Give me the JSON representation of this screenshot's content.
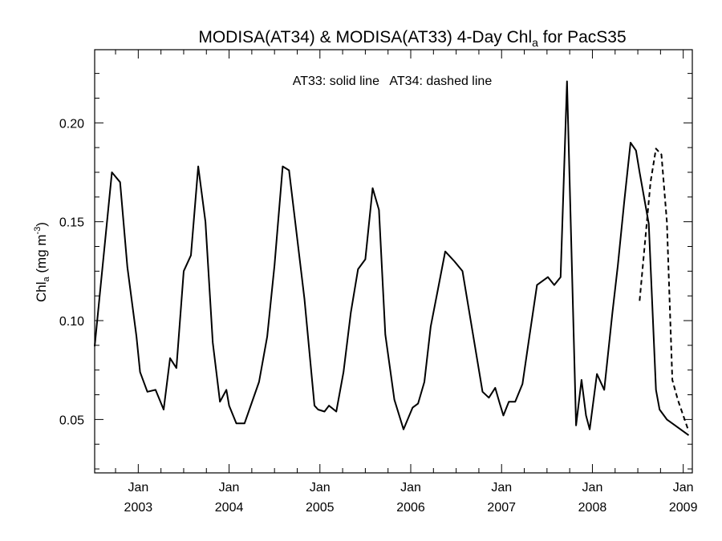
{
  "chart_data": {
    "type": "line",
    "title": {
      "main": "MODISA(AT34) & MODISA(AT33) 4-Day Chl",
      "sub": "a",
      "tail": " for PacS35"
    },
    "annotation": "AT33: solid line   AT34: dashed line",
    "ylabel": {
      "main": "Chl",
      "sub": "a",
      "unit_pre": " (mg m",
      "sup": "-3",
      "unit_post": ")"
    },
    "xlim": [
      2002.52,
      2009.1
    ],
    "ylim": [
      0.023,
      0.237
    ],
    "yticks": [
      0.05,
      0.1,
      0.15,
      0.2
    ],
    "ytick_labels": [
      "0.05",
      "0.10",
      "0.15",
      "0.20"
    ],
    "xticks": [
      2003,
      2004,
      2005,
      2006,
      2007,
      2008,
      2009
    ],
    "xtick_month_labels": [
      "Jan",
      "Jan",
      "Jan",
      "Jan",
      "Jan",
      "Jan",
      "Jan"
    ],
    "xtick_year_labels": [
      "2003",
      "2004",
      "2005",
      "2006",
      "2007",
      "2008",
      "2009"
    ],
    "series": [
      {
        "name": "AT33",
        "style": "solid",
        "color": "#000000",
        "x": [
          2002.52,
          2002.71,
          2002.8,
          2002.88,
          2002.98,
          2003.02,
          2003.1,
          2003.19,
          2003.28,
          2003.35,
          2003.42,
          2003.5,
          2003.58,
          2003.66,
          2003.74,
          2003.82,
          2003.9,
          2003.97,
          2004.0,
          2004.08,
          2004.17,
          2004.33,
          2004.42,
          2004.5,
          2004.59,
          2004.66,
          2004.83,
          2004.94,
          2004.98,
          2005.05,
          2005.1,
          2005.18,
          2005.26,
          2005.34,
          2005.42,
          2005.5,
          2005.58,
          2005.65,
          2005.72,
          2005.82,
          2005.92,
          2006.02,
          2006.08,
          2006.15,
          2006.22,
          2006.3,
          2006.38,
          2006.48,
          2006.57,
          2006.79,
          2006.86,
          2006.93,
          2006.98,
          2007.02,
          2007.08,
          2007.15,
          2007.23,
          2007.3,
          2007.39,
          2007.51,
          2007.58,
          2007.65,
          2007.72,
          2007.82,
          2007.88,
          2007.93,
          2007.97,
          2008.05,
          2008.13,
          2008.22,
          2008.28,
          2008.35,
          2008.42,
          2008.48,
          2008.52,
          2008.62,
          2008.7,
          2008.74,
          2008.82,
          2008.88,
          2008.97,
          2009.06
        ],
        "y": [
          0.087,
          0.175,
          0.17,
          0.127,
          0.092,
          0.074,
          0.064,
          0.065,
          0.055,
          0.081,
          0.076,
          0.125,
          0.133,
          0.178,
          0.15,
          0.089,
          0.059,
          0.065,
          0.057,
          0.048,
          0.048,
          0.069,
          0.092,
          0.128,
          0.178,
          0.176,
          0.111,
          0.057,
          0.055,
          0.054,
          0.057,
          0.054,
          0.074,
          0.104,
          0.126,
          0.131,
          0.167,
          0.156,
          0.093,
          0.06,
          0.045,
          0.056,
          0.058,
          0.069,
          0.097,
          0.116,
          0.135,
          0.13,
          0.125,
          0.064,
          0.061,
          0.066,
          0.058,
          0.052,
          0.059,
          0.059,
          0.068,
          0.09,
          0.118,
          0.122,
          0.118,
          0.122,
          0.221,
          0.047,
          0.07,
          0.052,
          0.045,
          0.073,
          0.065,
          0.104,
          0.128,
          0.16,
          0.19,
          0.186,
          0.175,
          0.149,
          0.065,
          0.055,
          0.05,
          0.048,
          0.045,
          0.042
        ]
      },
      {
        "name": "AT34",
        "style": "dashed",
        "color": "#000000",
        "x": [
          2008.52,
          2008.58,
          2008.64,
          2008.7,
          2008.76,
          2008.82,
          2008.88,
          2008.94,
          2009.0,
          2009.06
        ],
        "y": [
          0.11,
          0.14,
          0.17,
          0.187,
          0.184,
          0.15,
          0.07,
          0.06,
          0.052,
          0.044
        ]
      }
    ]
  }
}
